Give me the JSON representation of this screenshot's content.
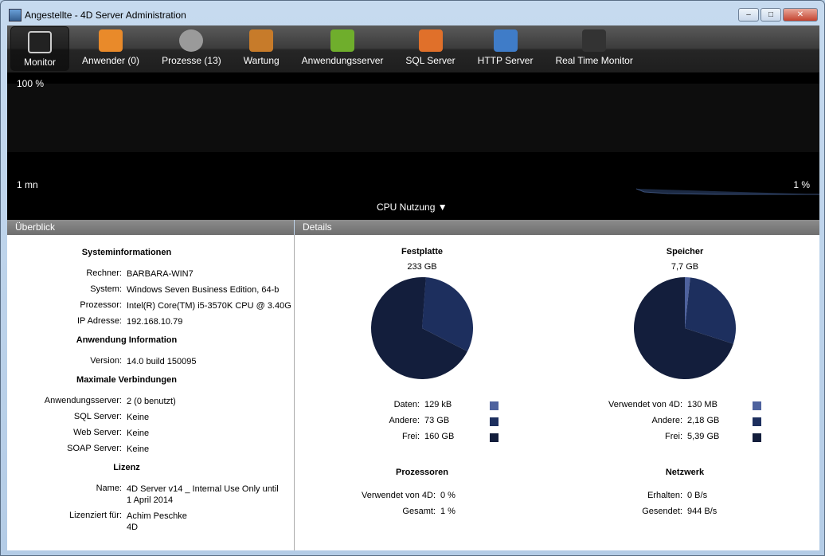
{
  "window": {
    "title": "Angestellte - 4D Server Administration",
    "icon": "4d-server-icon"
  },
  "toolbar": [
    {
      "label": "Monitor",
      "icon": "monitor-icon",
      "active": true
    },
    {
      "label": "Anwender (0)",
      "icon": "users-icon"
    },
    {
      "label": "Prozesse (13)",
      "icon": "gear-icon"
    },
    {
      "label": "Wartung",
      "icon": "tools-icon"
    },
    {
      "label": "Anwendungsserver",
      "icon": "app-server-icon"
    },
    {
      "label": "SQL Server",
      "icon": "sql-server-icon"
    },
    {
      "label": "HTTP Server",
      "icon": "http-server-icon"
    },
    {
      "label": "Real Time Monitor",
      "icon": "real-time-monitor-icon"
    }
  ],
  "graph": {
    "top_label": "100 %",
    "time_label": "1 mn",
    "current_value": "1 %",
    "selector": "CPU Nutzung"
  },
  "overview": {
    "header": "Überblick",
    "sections": [
      {
        "title": "Systeminformationen",
        "rows": [
          [
            "Rechner:",
            "BARBARA-WIN7"
          ],
          [
            "System:",
            "Windows Seven Business Edition, 64-b"
          ],
          [
            "Prozessor:",
            "Intel(R) Core(TM) i5-3570K CPU @ 3.40G"
          ],
          [
            "IP Adresse:",
            "192.168.10.79"
          ]
        ]
      },
      {
        "title": "Anwendung Information",
        "rows": [
          [
            "Version:",
            "14.0 build 150095"
          ]
        ]
      },
      {
        "title": "Maximale Verbindungen",
        "rows": [
          [
            "Anwendungsserver:",
            "2 (0 benutzt)"
          ],
          [
            "SQL Server:",
            "Keine"
          ],
          [
            "Web Server:",
            "Keine"
          ],
          [
            "SOAP Server:",
            "Keine"
          ]
        ]
      },
      {
        "title": "Lizenz",
        "rows": [
          [
            "Name:",
            "4D Server v14 _ Internal Use Only until",
            "1 April 2014"
          ],
          [
            "Lizenziert für:",
            "Achim Peschke",
            "4D"
          ]
        ]
      }
    ]
  },
  "details": {
    "header": "Details",
    "disk": {
      "title": "Festplatte",
      "total": "233 GB",
      "legend": [
        [
          "Daten:",
          "129 kB",
          "#4e629e"
        ],
        [
          "Andere:",
          "73 GB",
          "#1d2f5e"
        ],
        [
          "Frei:",
          "160 GB",
          "#131e3c"
        ]
      ]
    },
    "memory": {
      "title": "Speicher",
      "total": "7,7 GB",
      "legend": [
        [
          "Verwendet von 4D:",
          "130 MB",
          "#4e629e"
        ],
        [
          "Andere:",
          "2,18 GB",
          "#1d2f5e"
        ],
        [
          "Frei:",
          "5,39 GB",
          "#131e3c"
        ]
      ]
    },
    "processors": {
      "title": "Prozessoren",
      "rows": [
        [
          "Verwendet von 4D:",
          "0 %"
        ],
        [
          "Gesamt:",
          "1 %"
        ]
      ]
    },
    "network": {
      "title": "Netzwerk",
      "rows": [
        [
          "Erhalten:",
          "0 B/s"
        ],
        [
          "Gesendet:",
          "944 B/s"
        ]
      ]
    }
  },
  "chart_data": [
    {
      "type": "pie",
      "title": "Festplatte",
      "categories": [
        "Daten",
        "Andere",
        "Frei"
      ],
      "values": [
        0.000129,
        73,
        160
      ],
      "colors": [
        "#4e629e",
        "#1d2f5e",
        "#131e3c"
      ]
    },
    {
      "type": "pie",
      "title": "Speicher",
      "categories": [
        "Verwendet von 4D",
        "Andere",
        "Frei"
      ],
      "values": [
        0.13,
        2.18,
        5.39
      ],
      "colors": [
        "#4e629e",
        "#1d2f5e",
        "#131e3c"
      ]
    }
  ]
}
